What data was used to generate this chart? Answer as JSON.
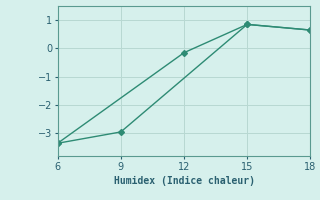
{
  "line1_x": [
    6,
    12,
    15,
    18
  ],
  "line1_y": [
    -3.35,
    -0.15,
    0.85,
    0.65
  ],
  "line2_x": [
    6,
    9,
    15,
    18
  ],
  "line2_y": [
    -3.35,
    -2.95,
    0.85,
    0.65
  ],
  "xlabel": "Humidex (Indice chaleur)",
  "xlim": [
    6,
    18
  ],
  "ylim": [
    -3.8,
    1.5
  ],
  "xticks": [
    6,
    9,
    12,
    15,
    18
  ],
  "yticks": [
    -3,
    -2,
    -1,
    0,
    1
  ],
  "line_color": "#2e8b74",
  "bg_color": "#d6f0ec",
  "grid_color": "#b8d8d2",
  "marker": "D",
  "marker_size": 3,
  "linewidth": 1.0
}
